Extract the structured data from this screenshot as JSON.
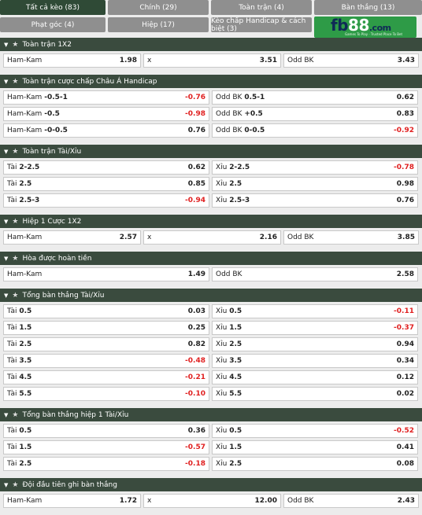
{
  "tabs": [
    {
      "label": "Tất cả kèo (83)",
      "active": true
    },
    {
      "label": "Chính (29)",
      "active": false
    },
    {
      "label": "Toàn trận (4)",
      "active": false
    },
    {
      "label": "Bàn thắng (13)",
      "active": false
    },
    {
      "label": "Phạt góc (4)",
      "active": false
    },
    {
      "label": "Hiệp (17)",
      "active": false
    },
    {
      "label": "Kèo chấp Handicap & cách biệt (3)",
      "active": false
    }
  ],
  "logo": {
    "text_main": "fb",
    "text_num": "88",
    "text_dom": ".com",
    "tagline": "Games To Play · Trusted Place To Bet"
  },
  "sections": [
    {
      "title": "Toàn trận 1X2",
      "cols": 3,
      "rows": [
        [
          {
            "label": "Ham-Kam",
            "odd": "1.98"
          },
          {
            "label": "x",
            "odd": "3.51"
          },
          {
            "label": "Odd BK",
            "odd": "3.43"
          }
        ]
      ]
    },
    {
      "title": "Toàn trận cược chấp Châu Á Handicap",
      "cols": 2,
      "rows": [
        [
          {
            "label": "Ham-Kam",
            "line": "-0.5-1",
            "odd": "-0.76"
          },
          {
            "label": "Odd BK",
            "line": "0.5-1",
            "odd": "0.62"
          }
        ],
        [
          {
            "label": "Ham-Kam",
            "line": "-0.5",
            "odd": "-0.98"
          },
          {
            "label": "Odd BK",
            "line": "+0.5",
            "odd": "0.83"
          }
        ],
        [
          {
            "label": "Ham-Kam",
            "line": "-0-0.5",
            "odd": "0.76"
          },
          {
            "label": "Odd BK",
            "line": "0-0.5",
            "odd": "-0.92"
          }
        ]
      ]
    },
    {
      "title": "Toàn trận Tài/Xỉu",
      "cols": 2,
      "rows": [
        [
          {
            "label": "Tài",
            "line": "2-2.5",
            "odd": "0.62"
          },
          {
            "label": "Xỉu",
            "line": "2-2.5",
            "odd": "-0.78"
          }
        ],
        [
          {
            "label": "Tài",
            "line": "2.5",
            "odd": "0.85"
          },
          {
            "label": "Xỉu",
            "line": "2.5",
            "odd": "0.98"
          }
        ],
        [
          {
            "label": "Tài",
            "line": "2.5-3",
            "odd": "-0.94"
          },
          {
            "label": "Xỉu",
            "line": "2.5-3",
            "odd": "0.76"
          }
        ]
      ]
    },
    {
      "title": "Hiệp 1 Cược 1X2",
      "cols": 3,
      "rows": [
        [
          {
            "label": "Ham-Kam",
            "odd": "2.57"
          },
          {
            "label": "x",
            "odd": "2.16"
          },
          {
            "label": "Odd BK",
            "odd": "3.85"
          }
        ]
      ]
    },
    {
      "title": "Hòa được hoàn tiền",
      "cols": 2,
      "rows": [
        [
          {
            "label": "Ham-Kam",
            "odd": "1.49"
          },
          {
            "label": "Odd BK",
            "odd": "2.58"
          }
        ]
      ]
    },
    {
      "title": "Tổng bàn thắng Tài/Xỉu",
      "cols": 2,
      "rows": [
        [
          {
            "label": "Tài",
            "line": "0.5",
            "odd": "0.03"
          },
          {
            "label": "Xỉu",
            "line": "0.5",
            "odd": "-0.11"
          }
        ],
        [
          {
            "label": "Tài",
            "line": "1.5",
            "odd": "0.25"
          },
          {
            "label": "Xỉu",
            "line": "1.5",
            "odd": "-0.37"
          }
        ],
        [
          {
            "label": "Tài",
            "line": "2.5",
            "odd": "0.82"
          },
          {
            "label": "Xỉu",
            "line": "2.5",
            "odd": "0.94"
          }
        ],
        [
          {
            "label": "Tài",
            "line": "3.5",
            "odd": "-0.48"
          },
          {
            "label": "Xỉu",
            "line": "3.5",
            "odd": "0.34"
          }
        ],
        [
          {
            "label": "Tài",
            "line": "4.5",
            "odd": "-0.21"
          },
          {
            "label": "Xỉu",
            "line": "4.5",
            "odd": "0.12"
          }
        ],
        [
          {
            "label": "Tài",
            "line": "5.5",
            "odd": "-0.10"
          },
          {
            "label": "Xỉu",
            "line": "5.5",
            "odd": "0.02"
          }
        ]
      ]
    },
    {
      "title": "Tổng bàn thắng hiệp 1 Tài/Xỉu",
      "cols": 2,
      "rows": [
        [
          {
            "label": "Tài",
            "line": "0.5",
            "odd": "0.36"
          },
          {
            "label": "Xỉu",
            "line": "0.5",
            "odd": "-0.52"
          }
        ],
        [
          {
            "label": "Tài",
            "line": "1.5",
            "odd": "-0.57"
          },
          {
            "label": "Xỉu",
            "line": "1.5",
            "odd": "0.41"
          }
        ],
        [
          {
            "label": "Tài",
            "line": "2.5",
            "odd": "-0.18"
          },
          {
            "label": "Xỉu",
            "line": "2.5",
            "odd": "0.08"
          }
        ]
      ]
    },
    {
      "title": "Đội đầu tiên ghi bàn thắng",
      "cols": 3,
      "rows": [
        [
          {
            "label": "Ham-Kam",
            "odd": "1.72"
          },
          {
            "label": "x",
            "odd": "12.00"
          },
          {
            "label": "Odd BK",
            "odd": "2.43"
          }
        ]
      ]
    }
  ],
  "icons": {
    "collapse": "triangle-down-icon",
    "favorite": "star-icon"
  },
  "colors": {
    "negative": "#e02020",
    "active_tab": "#2f4a36",
    "section_header": "#3a4b3e"
  }
}
